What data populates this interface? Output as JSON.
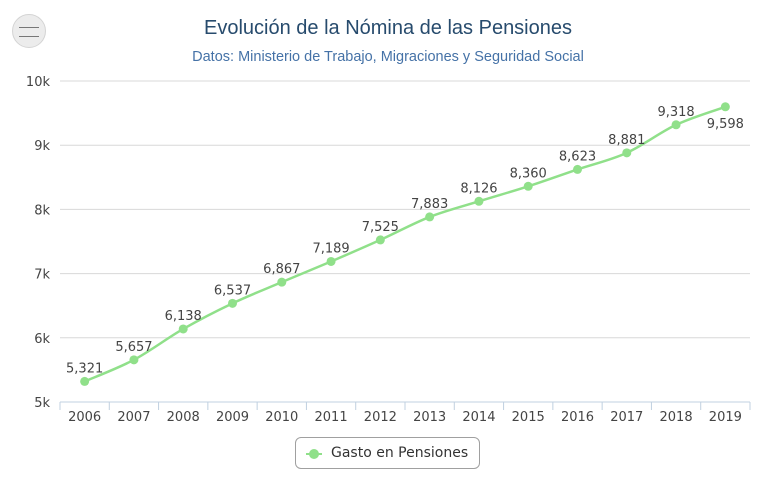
{
  "colors": {
    "series": "#90e08a",
    "title": "#274b6d",
    "subtitle": "#4572a7",
    "grid": "#d8d8d8",
    "text": "#444444"
  },
  "logo": {
    "icon": "ministry-seal-icon"
  },
  "chart_data": {
    "type": "line",
    "title": "Evolución de la Nómina de las Pensiones",
    "subtitle": "Datos: Ministerio de Trabajo, Migraciones y Seguridad Social",
    "xlabel": "",
    "ylabel": "",
    "categories": [
      "2006",
      "2007",
      "2008",
      "2009",
      "2010",
      "2011",
      "2012",
      "2013",
      "2014",
      "2015",
      "2016",
      "2017",
      "2018",
      "2019"
    ],
    "series": [
      {
        "name": "Gasto en Pensiones",
        "values": [
          5321,
          5657,
          6138,
          6537,
          6867,
          7189,
          7525,
          7883,
          8126,
          8360,
          8623,
          8881,
          9318,
          9598
        ],
        "data_labels": [
          "5,321",
          "5,657",
          "6,138",
          "6,537",
          "6,867",
          "7,189",
          "7,525",
          "7,883",
          "8,126",
          "8,360",
          "8,623",
          "8,881",
          "9,318",
          "9,598"
        ]
      }
    ],
    "ylim": [
      5000,
      10000
    ],
    "yticks": [
      5000,
      6000,
      7000,
      8000,
      9000,
      10000
    ],
    "ytick_labels": [
      "5k",
      "6k",
      "7k",
      "8k",
      "9k",
      "10k"
    ],
    "grid": true,
    "legend": {
      "position": "bottom-center",
      "label": "Gasto en Pensiones"
    }
  }
}
